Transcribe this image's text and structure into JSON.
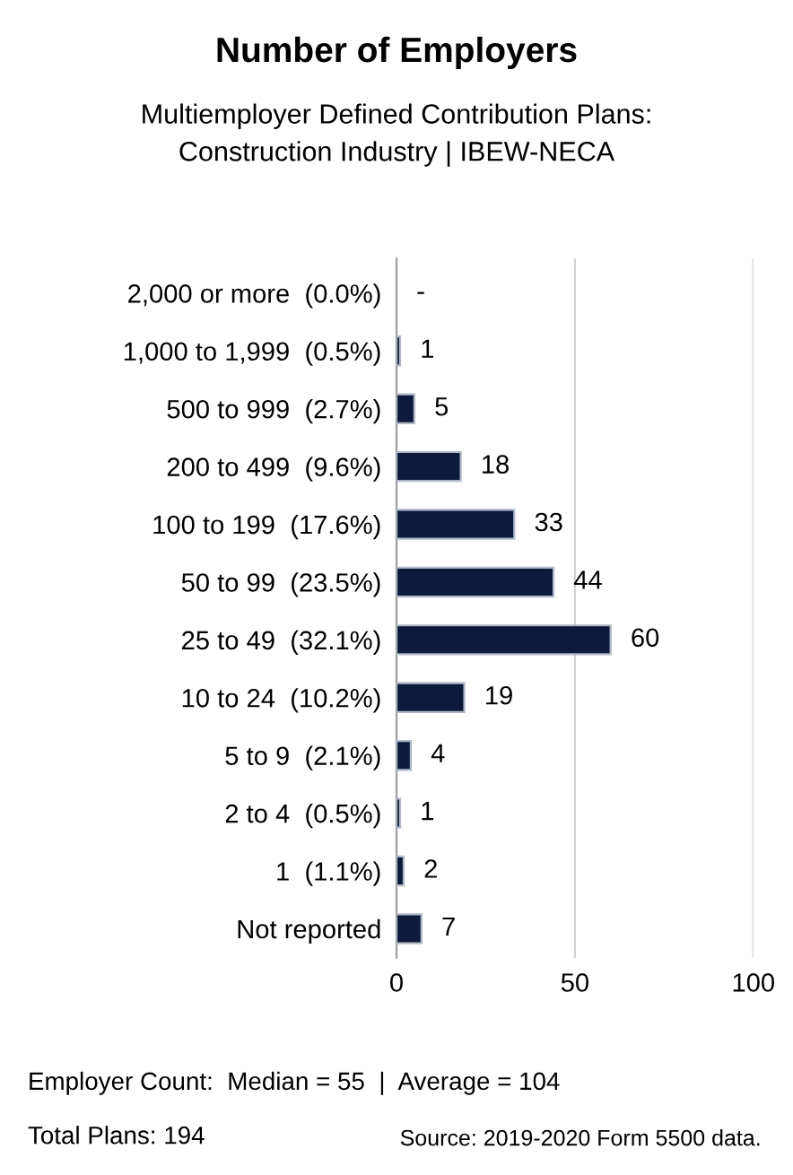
{
  "chart_data": {
    "type": "bar",
    "orientation": "horizontal",
    "title": "Number of Employers",
    "subtitle": "Multiemployer Defined Contribution Plans:\nConstruction Industry | IBEW-NECA",
    "categories": [
      "2,000 or more  (0.0%)",
      "1,000 to 1,999  (0.5%)",
      "500 to 999  (2.7%)",
      "200 to 499  (9.6%)",
      "100 to 199  (17.6%)",
      "50 to 99  (23.5%)",
      "25 to 49  (32.1%)",
      "10 to 24  (10.2%)",
      "5 to 9  (2.1%)",
      "2 to 4  (0.5%)",
      "1  (1.1%)",
      "Not reported"
    ],
    "values": [
      0,
      1,
      5,
      18,
      33,
      44,
      60,
      19,
      4,
      1,
      2,
      7
    ],
    "value_labels": [
      "-",
      "1",
      "5",
      "18",
      "33",
      "44",
      "60",
      "19",
      "4",
      "1",
      "2",
      "7"
    ],
    "color": "#0d1a3d",
    "xlim": [
      0,
      100
    ],
    "xticks": [
      0,
      50,
      100
    ],
    "grid": "x",
    "annotations": [
      "Employer Count:  Median = 55  |  Average = 104",
      "Total Plans: 194",
      "Source: 2019-2020 Form 5500 data."
    ]
  }
}
